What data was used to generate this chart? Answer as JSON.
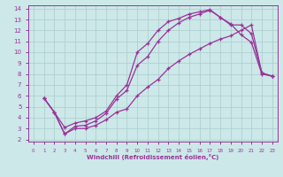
{
  "background_color": "#cce8e8",
  "line_color": "#993399",
  "grid_color": "#aacccc",
  "xlabel": "Windchill (Refroidissement éolien,°C)",
  "xlabel_color": "#993399",
  "tick_color": "#993399",
  "xlim": [
    -0.5,
    23.5
  ],
  "ylim": [
    1.8,
    14.3
  ],
  "xticks": [
    0,
    1,
    2,
    3,
    4,
    5,
    6,
    7,
    8,
    9,
    10,
    11,
    12,
    13,
    14,
    15,
    16,
    17,
    18,
    19,
    20,
    21,
    22,
    23
  ],
  "yticks": [
    2,
    3,
    4,
    5,
    6,
    7,
    8,
    9,
    10,
    11,
    12,
    13,
    14
  ],
  "curve_top_x": [
    1,
    2,
    3,
    4,
    5,
    6,
    7,
    8,
    9,
    10,
    11,
    12,
    13,
    14,
    15,
    16,
    17,
    18,
    19,
    20,
    21,
    22,
    23
  ],
  "curve_top_y": [
    5.8,
    4.5,
    3.1,
    3.5,
    3.7,
    4.0,
    4.6,
    6.0,
    7.0,
    10.0,
    10.8,
    12.0,
    12.8,
    13.1,
    13.5,
    13.7,
    13.9,
    13.2,
    12.6,
    11.6,
    10.9,
    8.0,
    7.8
  ],
  "curve_mid_x": [
    1,
    2,
    3,
    4,
    5,
    6,
    7,
    8,
    9,
    10,
    11,
    12,
    13,
    14,
    15,
    16,
    17,
    18,
    19,
    20,
    21,
    22,
    23
  ],
  "curve_mid_y": [
    5.8,
    4.5,
    2.5,
    3.2,
    3.3,
    3.7,
    4.4,
    5.7,
    6.5,
    8.8,
    9.6,
    11.0,
    12.0,
    12.7,
    13.2,
    13.5,
    13.85,
    13.2,
    12.5,
    12.5,
    11.7,
    8.1,
    7.8
  ],
  "curve_bot_x": [
    1,
    2,
    3,
    4,
    5,
    6,
    7,
    8,
    9,
    10,
    11,
    12,
    13,
    14,
    15,
    16,
    17,
    18,
    19,
    20,
    21,
    22,
    23
  ],
  "curve_bot_y": [
    5.8,
    4.5,
    2.5,
    3.0,
    3.0,
    3.3,
    3.8,
    4.5,
    4.8,
    6.0,
    6.8,
    7.5,
    8.5,
    9.2,
    9.8,
    10.3,
    10.8,
    11.2,
    11.5,
    12.0,
    12.5,
    8.1,
    7.8
  ]
}
